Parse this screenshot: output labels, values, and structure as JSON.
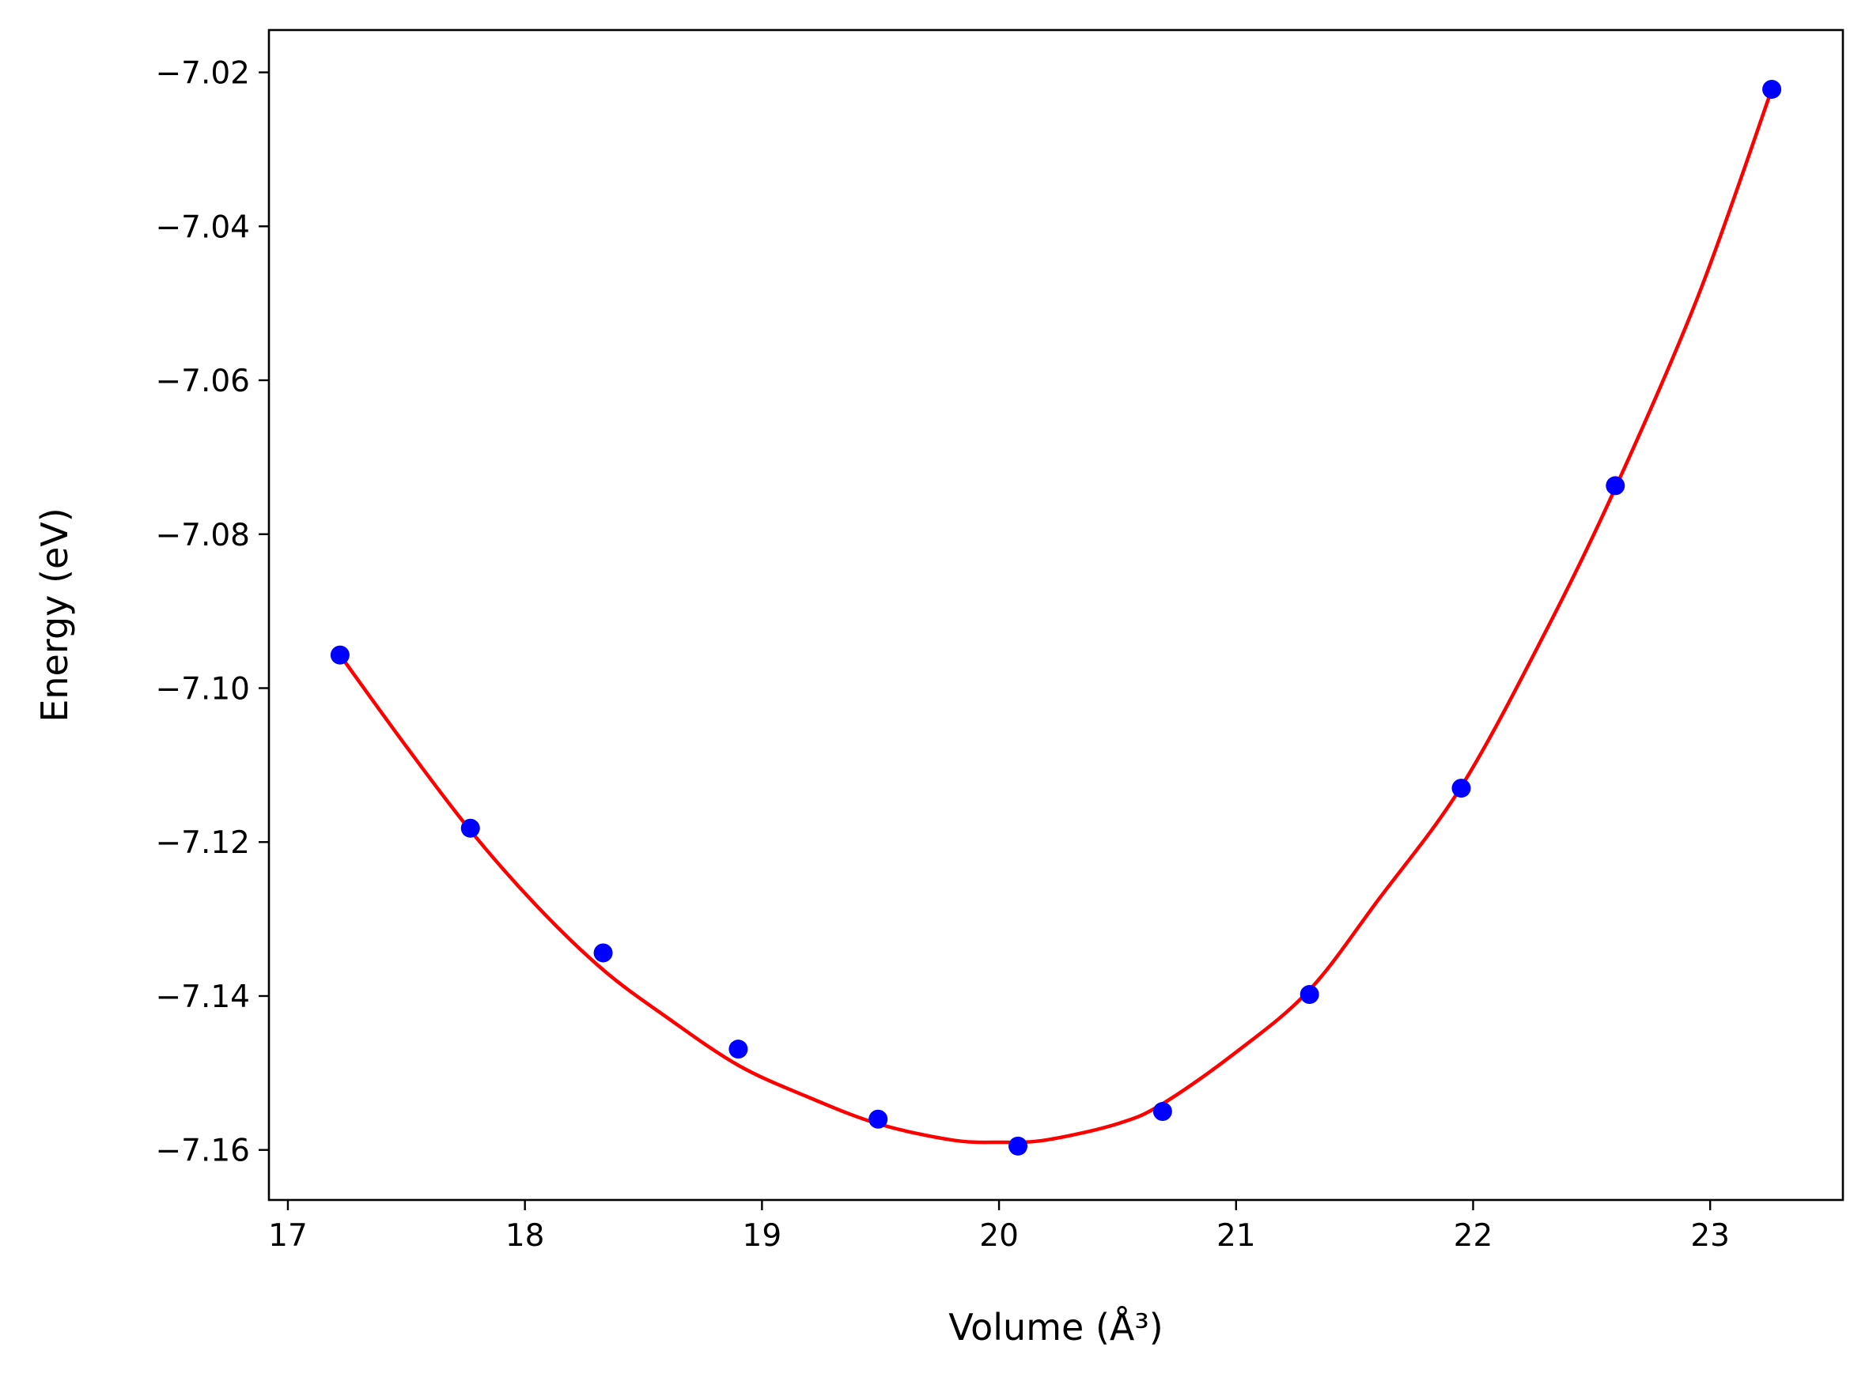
{
  "chart_data": {
    "type": "scatter",
    "xlabel": "Volume (Å³)",
    "ylabel": "Energy (eV)",
    "xlim": [
      16.92,
      23.56
    ],
    "ylim": [
      -7.1665,
      -7.0145
    ],
    "x_ticks": [
      17,
      18,
      19,
      20,
      21,
      22,
      23
    ],
    "x_tick_labels": [
      "17",
      "18",
      "19",
      "20",
      "21",
      "22",
      "23"
    ],
    "y_ticks": [
      -7.16,
      -7.14,
      -7.12,
      -7.1,
      -7.08,
      -7.06,
      -7.04,
      -7.02
    ],
    "y_tick_labels": [
      "−7.16",
      "−7.14",
      "−7.12",
      "−7.10",
      "−7.08",
      "−7.06",
      "−7.04",
      "−7.02"
    ],
    "grid": false,
    "series": [
      {
        "kind": "points",
        "color": "#0000ff",
        "x": [
          17.22,
          17.77,
          18.33,
          18.9,
          19.49,
          20.08,
          20.69,
          21.31,
          21.95,
          22.6,
          23.26
        ],
        "y": [
          -7.0957,
          -7.1182,
          -7.1344,
          -7.1469,
          -7.156,
          -7.1595,
          -7.155,
          -7.1398,
          -7.113,
          -7.0737,
          -7.0222
        ]
      },
      {
        "kind": "line",
        "color": "#ff0000",
        "x": [
          17.22,
          17.5,
          17.77,
          18.05,
          18.33,
          18.6,
          18.9,
          19.2,
          19.49,
          19.8,
          20.0,
          20.2,
          20.5,
          20.69,
          21.0,
          21.31,
          21.6,
          21.95,
          22.3,
          22.6,
          22.95,
          23.26
        ],
        "y": [
          -7.0957,
          -7.1076,
          -7.1185,
          -7.1283,
          -7.1366,
          -7.1428,
          -7.149,
          -7.1532,
          -7.1566,
          -7.1587,
          -7.159,
          -7.1587,
          -7.1566,
          -7.154,
          -7.1473,
          -7.1392,
          -7.1275,
          -7.1128,
          -7.093,
          -7.074,
          -7.049,
          -7.0222
        ]
      }
    ]
  }
}
